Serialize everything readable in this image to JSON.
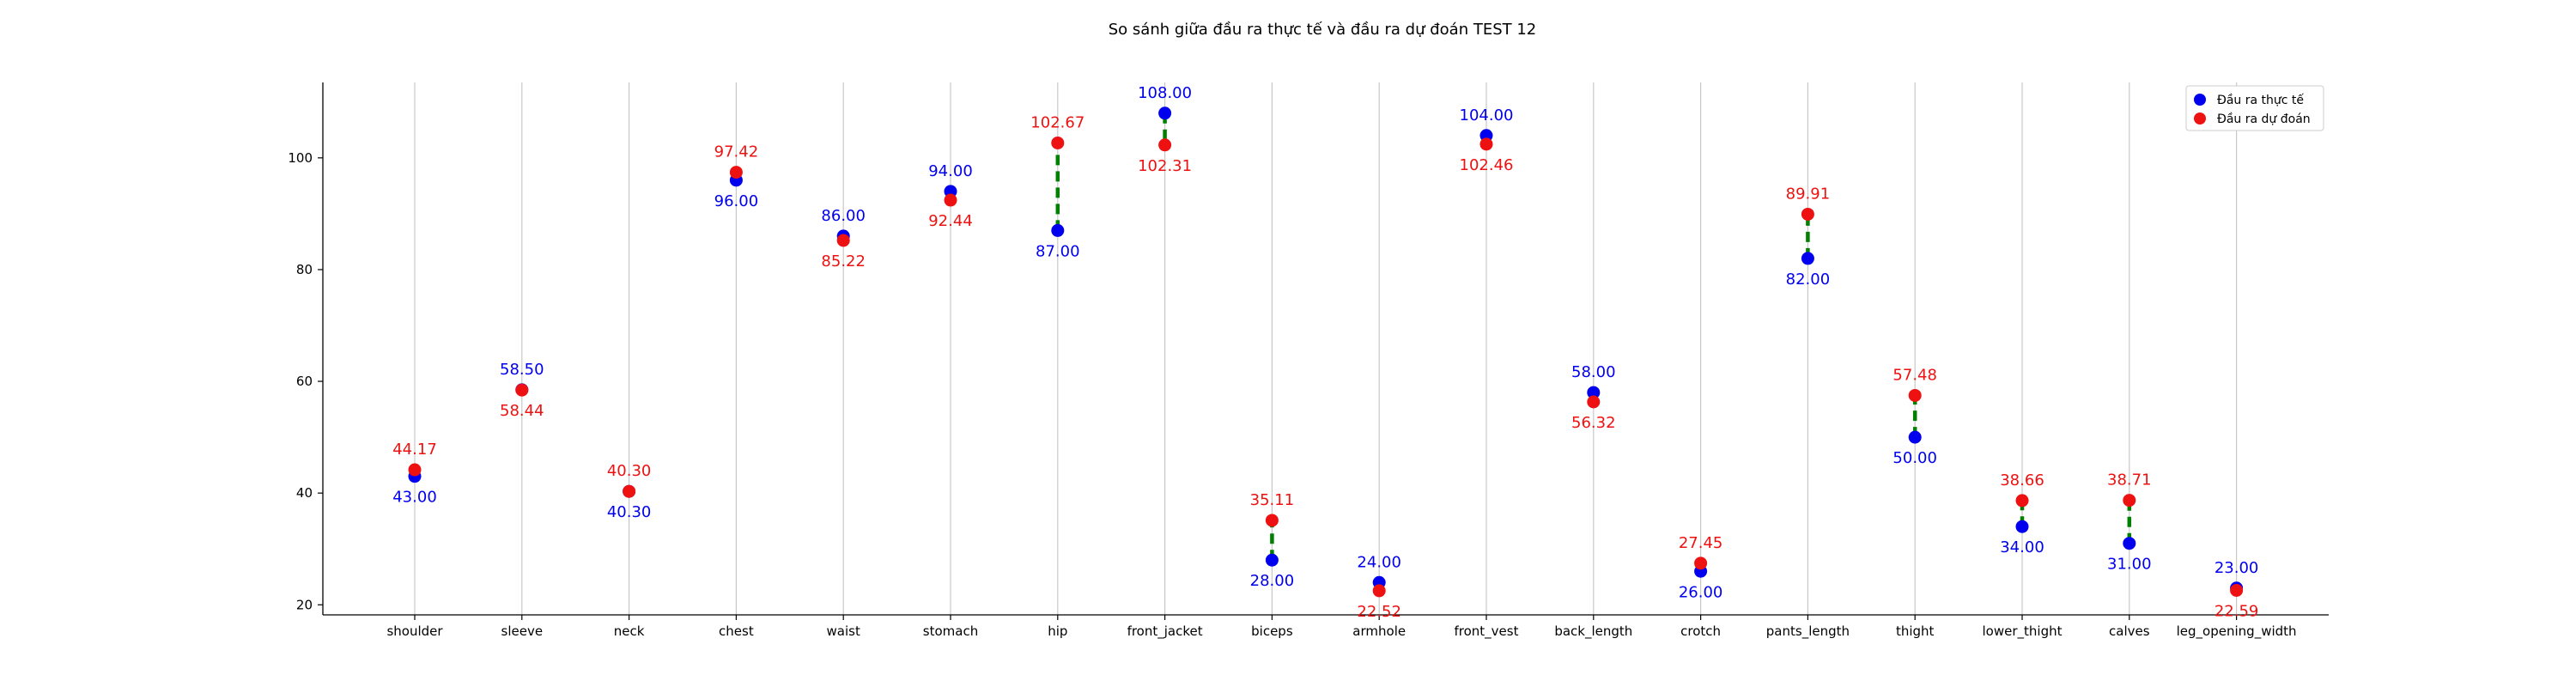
{
  "chart_data": {
    "type": "scatter",
    "title": "So sánh giữa đầu ra thực tế và đầu ra dự đoán TEST 12",
    "xlabel": "",
    "ylabel": "",
    "categories": [
      "shoulder",
      "sleeve",
      "neck",
      "chest",
      "waist",
      "stomach",
      "hip",
      "front_jacket",
      "biceps",
      "armhole",
      "front_vest",
      "back_length",
      "crotch",
      "pants_length",
      "thight",
      "lower_thight",
      "calves",
      "leg_opening_width"
    ],
    "series": [
      {
        "name": "Đầu ra thực tế",
        "color": "#0000ee",
        "values": [
          43.0,
          58.5,
          40.3,
          96.0,
          86.0,
          94.0,
          87.0,
          108.0,
          28.0,
          24.0,
          104.0,
          58.0,
          26.0,
          82.0,
          50.0,
          34.0,
          31.0,
          23.0
        ],
        "labels": [
          "43.00",
          "58.50",
          "40.30",
          "96.00",
          "86.00",
          "94.00",
          "87.00",
          "108.00",
          "28.00",
          "24.00",
          "104.00",
          "58.00",
          "26.00",
          "82.00",
          "50.00",
          "34.00",
          "31.00",
          "23.00"
        ]
      },
      {
        "name": "Đầu ra dự đoán",
        "color": "#ee1111",
        "values": [
          44.17,
          58.44,
          40.3,
          97.42,
          85.22,
          92.44,
          102.67,
          102.31,
          35.11,
          22.52,
          102.46,
          56.32,
          27.45,
          89.91,
          57.48,
          38.66,
          38.71,
          22.59
        ],
        "labels": [
          "44.17",
          "58.44",
          "40.30",
          "97.42",
          "85.22",
          "92.44",
          "102.67",
          "102.31",
          "35.11",
          "22.52",
          "102.46",
          "56.32",
          "27.45",
          "89.91",
          "57.48",
          "38.66",
          "38.71",
          "22.59"
        ]
      }
    ],
    "connector_color": "#008000",
    "ylim": [
      18.2,
      113.5
    ],
    "yticks": [
      20,
      40,
      60,
      80,
      100
    ],
    "ytick_labels": [
      "20",
      "40",
      "60",
      "80",
      "100"
    ],
    "grid": "vertical",
    "legend_position": "top-right"
  }
}
